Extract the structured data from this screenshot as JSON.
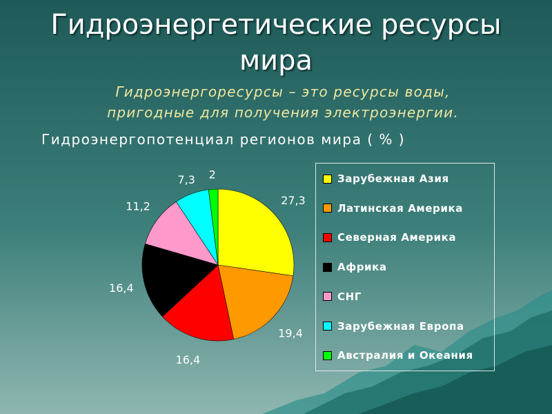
{
  "title": "Гидроэнергетические  ресурсы мира",
  "subtitle_line1": "Гидроэнергоресурсы – это  ресурсы  воды,",
  "subtitle_line2": "пригодные  для  получения  электроэнергии.",
  "chart_heading": "Гидроэнергопотенциал  регионов  мира  ( % )",
  "chart_data": {
    "type": "pie",
    "categories": [
      "Зарубежная Азия",
      "Латинская Америка",
      "Северная Америка",
      "Африка",
      "СНГ",
      "Зарубежная Европа",
      "Австралия и Океания"
    ],
    "values": [
      27.3,
      19.4,
      16.4,
      16.4,
      11.2,
      7.3,
      2
    ],
    "labels": [
      "27,3",
      "19,4",
      "16,4",
      "16,4",
      "11,2",
      "7,3",
      "2"
    ],
    "colors": [
      "#ffff00",
      "#ff9900",
      "#ff0000",
      "#000000",
      "#ff99cc",
      "#00ffff",
      "#00ff00"
    ],
    "legend_position": "right"
  }
}
